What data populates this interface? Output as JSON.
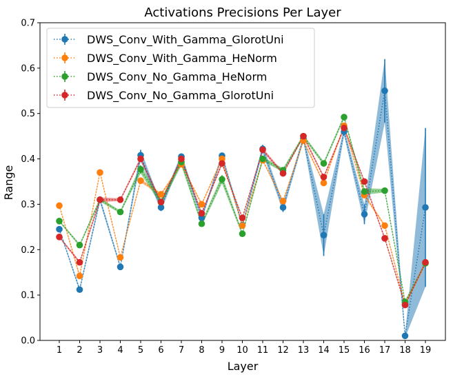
{
  "chart_data": {
    "type": "line",
    "title": "Activations Precisions Per Layer",
    "xlabel": "Layer",
    "ylabel": "Range",
    "categories": [
      "1",
      "2",
      "3",
      "4",
      "5",
      "6",
      "7",
      "8",
      "9",
      "10",
      "11",
      "12",
      "13",
      "14",
      "15",
      "16",
      "17",
      "18",
      "19"
    ],
    "ylim": [
      0,
      0.7
    ],
    "yticks": [
      "0.0",
      "0.1",
      "0.2",
      "0.3",
      "0.4",
      "0.5",
      "0.6",
      "0.7"
    ],
    "ytick_values": [
      0,
      0.1,
      0.2,
      0.3,
      0.4,
      0.5,
      0.6,
      0.7
    ],
    "legend_position": "upper-left",
    "series": [
      {
        "name": "DWS_Conv_With_Gamma_GlorotUni",
        "color": "#1f77b4",
        "values": [
          0.245,
          0.112,
          0.31,
          0.162,
          0.408,
          0.293,
          0.405,
          0.27,
          0.407,
          0.254,
          0.422,
          0.293,
          0.445,
          0.232,
          0.46,
          0.278,
          0.55,
          0.01,
          0.293
        ],
        "errors": [
          0.002,
          0.004,
          0.006,
          0.004,
          0.012,
          0.008,
          0.007,
          0.005,
          0.006,
          0.004,
          0.009,
          0.01,
          0.006,
          0.046,
          0.008,
          0.022,
          0.07,
          0.004,
          0.175
        ]
      },
      {
        "name": "DWS_Conv_With_Gamma_HeNorm",
        "color": "#ff7f0e",
        "values": [
          0.297,
          0.142,
          0.37,
          0.183,
          0.352,
          0.322,
          0.388,
          0.3,
          0.4,
          0.253,
          0.397,
          0.307,
          0.44,
          0.347,
          0.473,
          0.32,
          0.253,
          0.08,
          0.17
        ],
        "errors": [
          0.002,
          0.004,
          0.003,
          0.003,
          0.004,
          0.003,
          0.003,
          0.003,
          0.003,
          0.003,
          0.003,
          0.003,
          0.003,
          0.003,
          0.003,
          0.003,
          0.003,
          0.003,
          0.003
        ]
      },
      {
        "name": "DWS_Conv_No_Gamma_HeNorm",
        "color": "#2ca02c",
        "values": [
          0.263,
          0.21,
          0.31,
          0.283,
          0.377,
          0.305,
          0.393,
          0.257,
          0.355,
          0.235,
          0.4,
          0.375,
          0.45,
          0.39,
          0.492,
          0.328,
          0.33,
          0.085,
          0.17
        ],
        "errors": [
          0.002,
          0.003,
          0.004,
          0.003,
          0.009,
          0.007,
          0.008,
          0.005,
          0.009,
          0.004,
          0.005,
          0.004,
          0.004,
          0.004,
          0.004,
          0.007,
          0.004,
          0.003,
          0.003
        ]
      },
      {
        "name": "DWS_Conv_No_Gamma_GlorotUni",
        "color": "#d62728",
        "values": [
          0.228,
          0.172,
          0.31,
          0.31,
          0.4,
          0.305,
          0.4,
          0.28,
          0.39,
          0.27,
          0.42,
          0.368,
          0.45,
          0.36,
          0.468,
          0.35,
          0.225,
          0.078,
          0.172
        ],
        "errors": [
          0.002,
          0.003,
          0.005,
          0.003,
          0.004,
          0.004,
          0.004,
          0.004,
          0.004,
          0.003,
          0.004,
          0.003,
          0.003,
          0.003,
          0.004,
          0.003,
          0.003,
          0.003,
          0.003
        ]
      }
    ]
  }
}
